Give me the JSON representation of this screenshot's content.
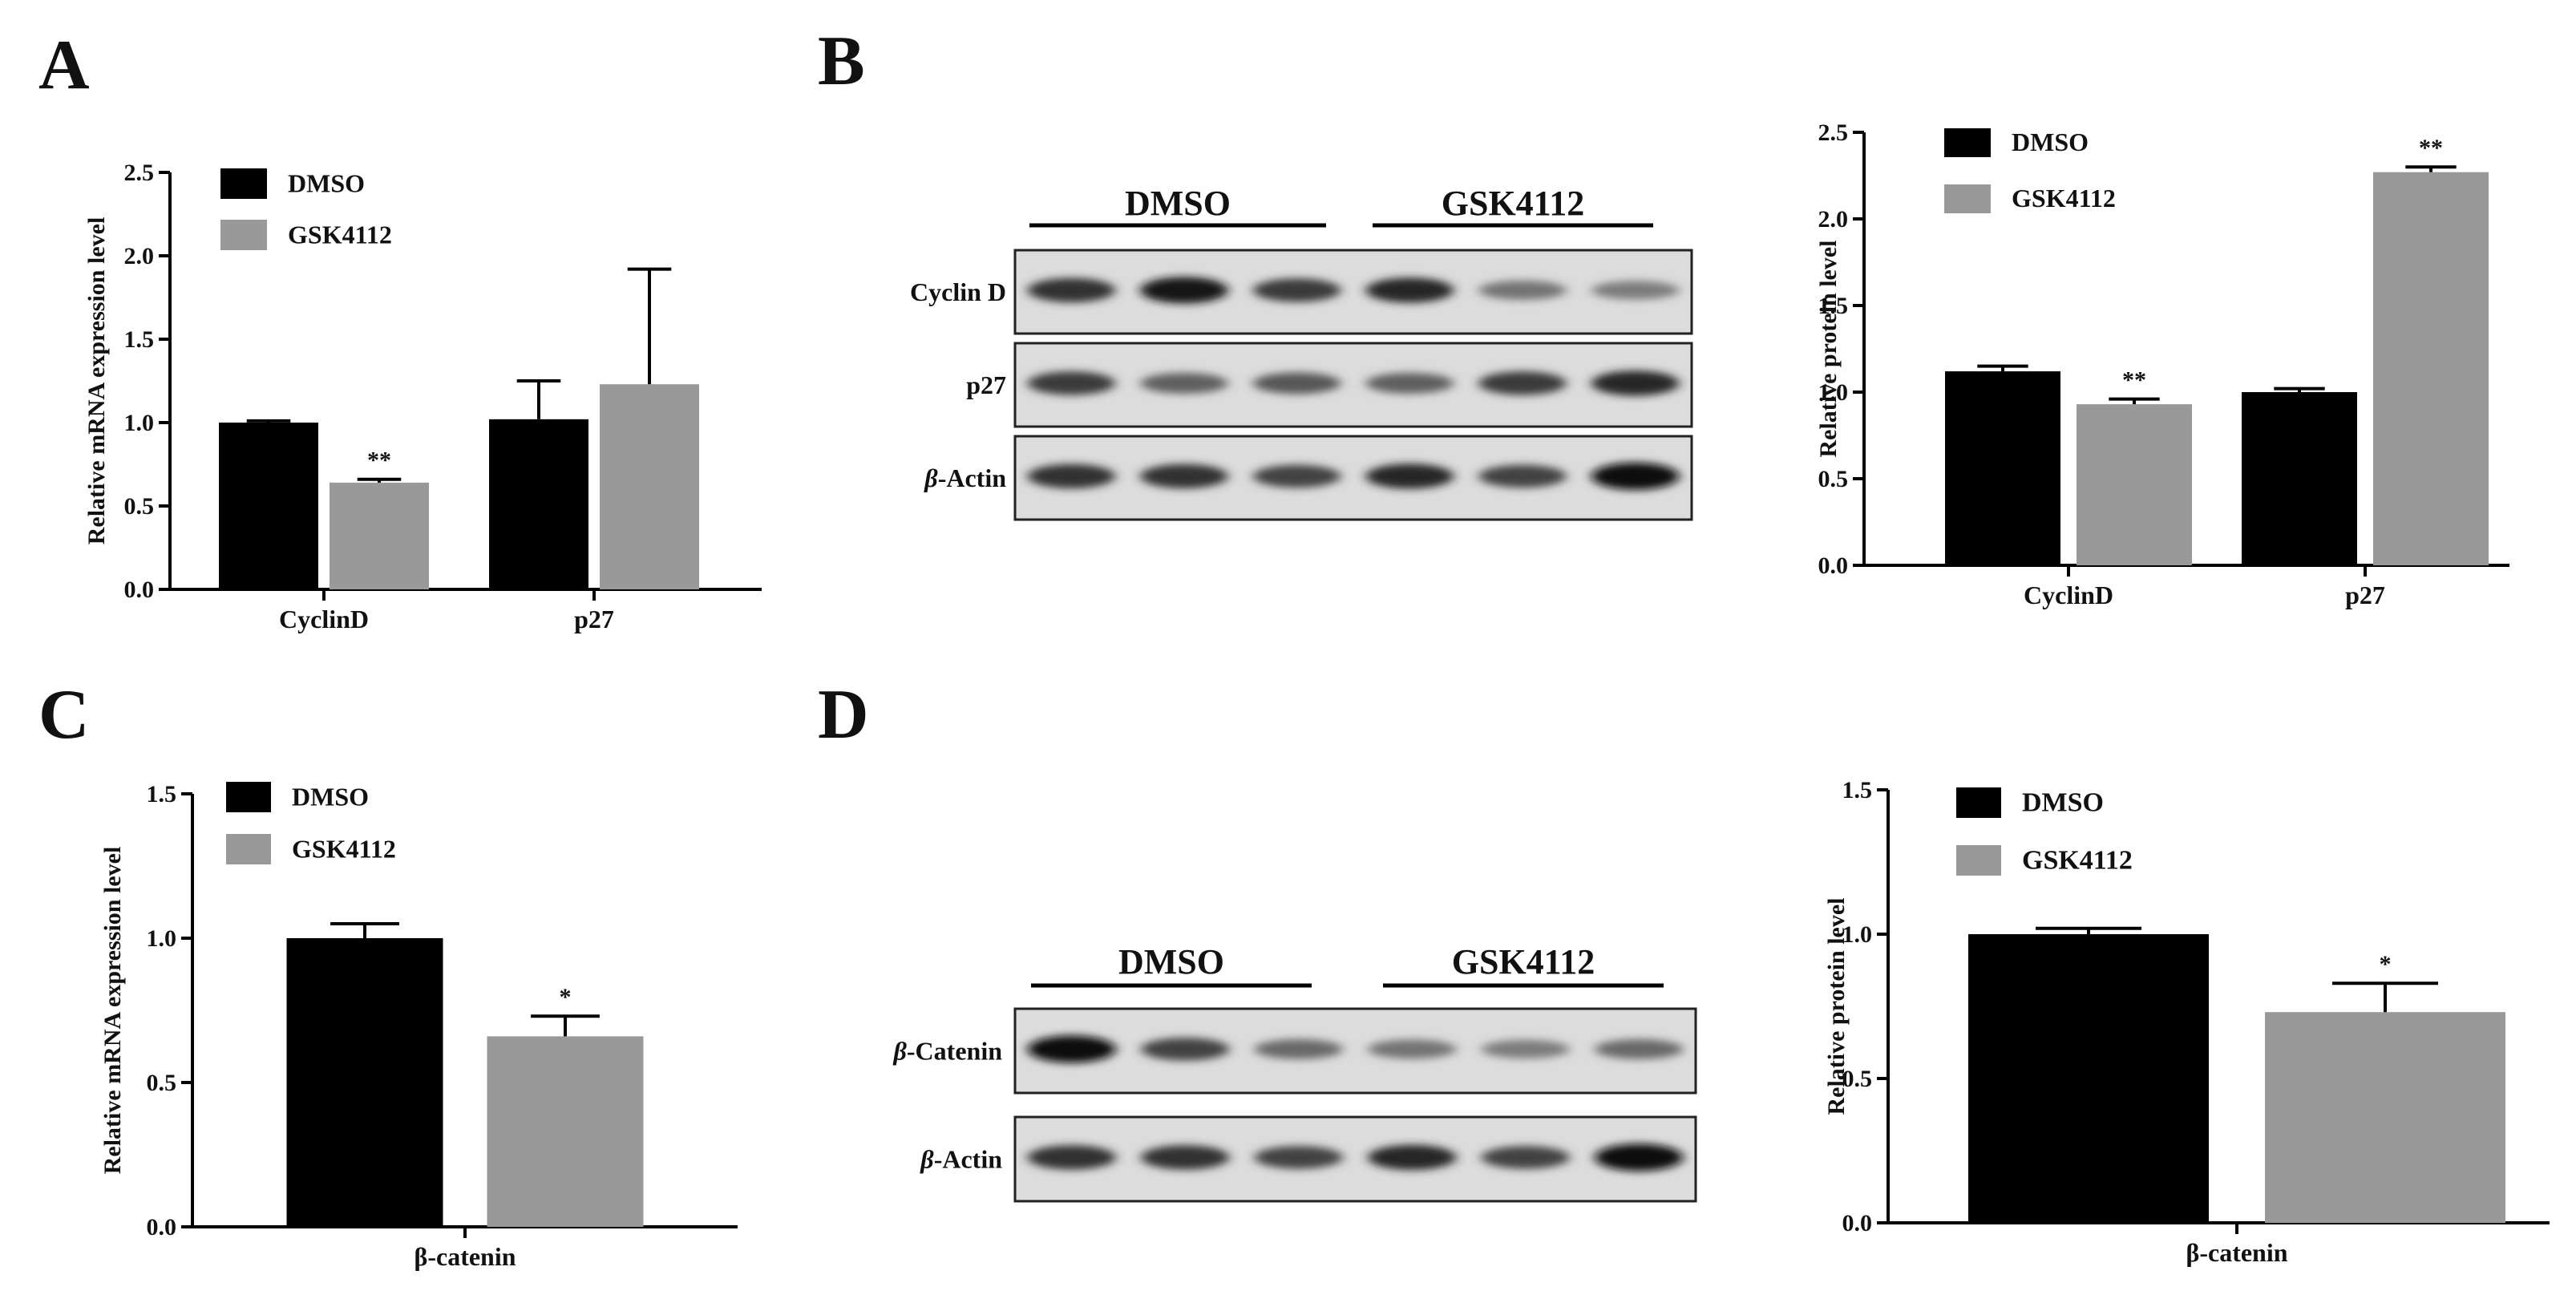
{
  "panels": [
    {
      "id": "A",
      "letter": "A",
      "kind": "chart",
      "chart": 0
    },
    {
      "id": "B",
      "letter": "B",
      "kind": "blot+chart",
      "blot": 0,
      "chart": 1
    },
    {
      "id": "C",
      "letter": "C",
      "kind": "chart",
      "chart": 2
    },
    {
      "id": "D",
      "letter": "D",
      "kind": "blot+chart",
      "blot": 1,
      "chart": 3
    }
  ],
  "colors": {
    "dmso": "#000000",
    "gsk4112": "#999999",
    "axis": "#000000",
    "text": "#111111"
  },
  "chart_data": [
    {
      "panel": "A",
      "type": "bar",
      "title": "",
      "xlabel": "",
      "ylabel": "Relative mRNA expression level",
      "categories": [
        "CyclinD",
        "p27"
      ],
      "ylim": [
        0,
        2.5
      ],
      "yticks": [
        "0.0",
        "0.5",
        "1.0",
        "1.5",
        "2.0",
        "2.5"
      ],
      "series": [
        {
          "name": "DMSO",
          "values": [
            1.0,
            1.02
          ],
          "errors": [
            0.01,
            0.23
          ],
          "marks": [
            "",
            ""
          ]
        },
        {
          "name": "GSK4112",
          "values": [
            0.64,
            1.23
          ],
          "errors": [
            0.02,
            0.69
          ],
          "marks": [
            "**",
            ""
          ]
        }
      ],
      "legend_position": "top-left",
      "grid": false
    },
    {
      "panel": "B",
      "type": "bar",
      "title": "",
      "xlabel": "",
      "ylabel": "Relative protein level",
      "categories": [
        "CyclinD",
        "p27"
      ],
      "ylim": [
        0,
        2.5
      ],
      "yticks": [
        "0.0",
        "0.5",
        "1.0",
        "1.5",
        "2.0",
        "2.5"
      ],
      "series": [
        {
          "name": "DMSO",
          "values": [
            1.12,
            1.0
          ],
          "errors": [
            0.03,
            0.02
          ],
          "marks": [
            "",
            ""
          ]
        },
        {
          "name": "GSK4112",
          "values": [
            0.93,
            2.27
          ],
          "errors": [
            0.03,
            0.03
          ],
          "marks": [
            "**",
            "**"
          ]
        }
      ],
      "legend_position": "top-left",
      "grid": false
    },
    {
      "panel": "C",
      "type": "bar",
      "title": "",
      "xlabel": "",
      "ylabel": "Relative mRNA expression level",
      "categories": [
        "β-catenin"
      ],
      "ylim": [
        0,
        1.5
      ],
      "yticks": [
        "0.0",
        "0.5",
        "1.0",
        "1.5"
      ],
      "series": [
        {
          "name": "DMSO",
          "values": [
            1.0
          ],
          "errors": [
            0.05
          ],
          "marks": [
            ""
          ]
        },
        {
          "name": "GSK4112",
          "values": [
            0.66
          ],
          "errors": [
            0.07
          ],
          "marks": [
            "*"
          ]
        }
      ],
      "legend_position": "top-left",
      "grid": false
    },
    {
      "panel": "D",
      "type": "bar",
      "title": "",
      "xlabel": "",
      "ylabel": "Relative protein level",
      "categories": [
        "β-catenin"
      ],
      "ylim": [
        0,
        1.5
      ],
      "yticks": [
        "0.0",
        "0.5",
        "1.0",
        "1.5"
      ],
      "series": [
        {
          "name": "DMSO",
          "values": [
            1.0
          ],
          "errors": [
            0.02
          ],
          "marks": [
            ""
          ]
        },
        {
          "name": "GSK4112",
          "values": [
            0.73
          ],
          "errors": [
            0.1
          ],
          "marks": [
            "*"
          ]
        }
      ],
      "legend_position": "top-left",
      "grid": false
    }
  ],
  "blots": [
    {
      "panel": "B",
      "groups": [
        "DMSO",
        "GSK4112"
      ],
      "rows": [
        {
          "label_prefix": "",
          "label_text": "Cyclin D",
          "intensities": [
            0.8,
            0.95,
            0.75,
            0.85,
            0.45,
            0.4
          ]
        },
        {
          "label_prefix": "",
          "label_text": "p27",
          "intensities": [
            0.75,
            0.55,
            0.6,
            0.55,
            0.75,
            0.85
          ]
        },
        {
          "label_prefix": "β",
          "label_text": "-Actin",
          "intensities": [
            0.8,
            0.8,
            0.7,
            0.85,
            0.7,
            1.0
          ]
        }
      ]
    },
    {
      "panel": "D",
      "groups": [
        "DMSO",
        "GSK4112"
      ],
      "rows": [
        {
          "label_prefix": "β",
          "label_text": "-Catenin",
          "intensities": [
            1.0,
            0.7,
            0.5,
            0.45,
            0.4,
            0.5
          ]
        },
        {
          "label_prefix": "β",
          "label_text": "-Actin",
          "intensities": [
            0.8,
            0.8,
            0.7,
            0.85,
            0.7,
            1.0
          ]
        }
      ]
    }
  ]
}
